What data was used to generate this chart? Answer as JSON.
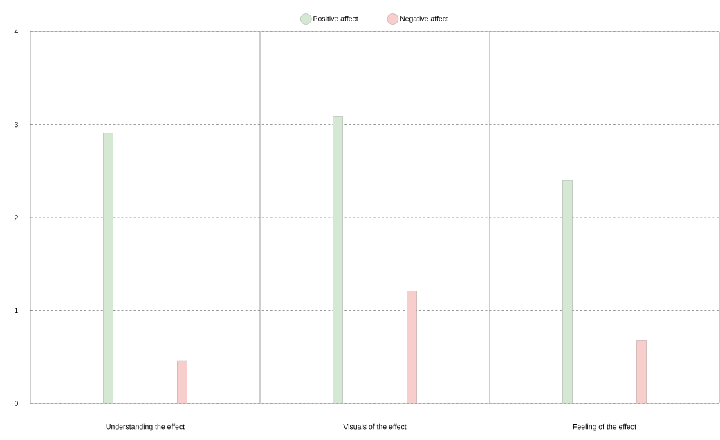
{
  "chart_data": {
    "type": "bar",
    "categories": [
      "Understanding the effect",
      "Visuals of the effect",
      "Feeling of the effect"
    ],
    "series": [
      {
        "name": "Positive affect",
        "color": "#d5e8d4",
        "values": [
          2.91,
          3.09,
          2.4
        ]
      },
      {
        "name": "Negative affect",
        "color": "#f8cecc",
        "values": [
          0.46,
          1.21,
          0.68
        ]
      }
    ],
    "ylim": [
      0,
      4
    ],
    "yticks": [
      0,
      1,
      2,
      3,
      4
    ],
    "grid": true,
    "legend": "top",
    "marker": "circle"
  }
}
